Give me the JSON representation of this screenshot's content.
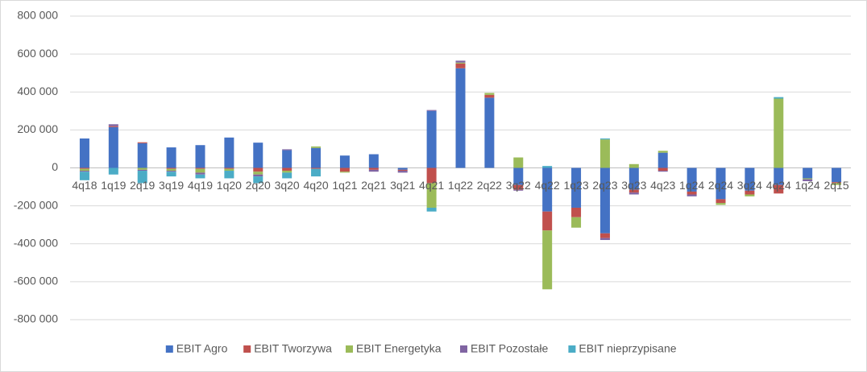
{
  "chart_data": {
    "type": "stacked_bar",
    "categories": [
      "4q18",
      "1q19",
      "2q19",
      "3q19",
      "4q19",
      "1q20",
      "2q20",
      "3q20",
      "4q20",
      "1q21",
      "2q21",
      "3q21",
      "4q21",
      "1q22",
      "2q22",
      "3q22",
      "4q22",
      "1q23",
      "2q23",
      "3q23",
      "4q23",
      "1q24",
      "2q24",
      "3q24",
      "4q24",
      "1q24",
      "2q15"
    ],
    "series": [
      {
        "name": "EBIT Agro",
        "color": "#4472c4",
        "values": [
          155000,
          215000,
          130000,
          108000,
          120000,
          160000,
          133000,
          93000,
          105000,
          65000,
          72000,
          -10000,
          300000,
          525000,
          370000,
          -90000,
          -230000,
          -210000,
          -345000,
          -115000,
          80000,
          -125000,
          -165000,
          -120000,
          -90000,
          -55000,
          -75000
        ]
      },
      {
        "name": "EBIT Tworzywa",
        "color": "#c0504d",
        "values": [
          -5000,
          5000,
          5000,
          -5000,
          -5000,
          -5000,
          -20000,
          -15000,
          -5000,
          -20000,
          -10000,
          -5000,
          -80000,
          25000,
          15000,
          -25000,
          -100000,
          -50000,
          -25000,
          -15000,
          -15000,
          -15000,
          -20000,
          -20000,
          -45000,
          0,
          -5000
        ]
      },
      {
        "name": "EBIT Energetyka",
        "color": "#9bbb59",
        "values": [
          -10000,
          0,
          -10000,
          -10000,
          -20000,
          -10000,
          -15000,
          -10000,
          8000,
          -5000,
          0,
          0,
          -130000,
          5000,
          10000,
          55000,
          -310000,
          -55000,
          150000,
          20000,
          10000,
          0,
          -10000,
          -10000,
          365000,
          -5000,
          -10000
        ]
      },
      {
        "name": "EBIT Pozostałe",
        "color": "#8064a2",
        "values": [
          -5000,
          10000,
          -5000,
          -5000,
          -10000,
          0,
          -10000,
          5000,
          0,
          0,
          -10000,
          -10000,
          5000,
          10000,
          0,
          -5000,
          0,
          0,
          -10000,
          -10000,
          -5000,
          -10000,
          0,
          0,
          0,
          -10000,
          0
        ]
      },
      {
        "name": "EBIT nieprzypisane",
        "color": "#4bacc6",
        "values": [
          -45000,
          -35000,
          -65000,
          -25000,
          -20000,
          -40000,
          -35000,
          -30000,
          -40000,
          0,
          0,
          0,
          -20000,
          0,
          0,
          0,
          10000,
          0,
          5000,
          0,
          0,
          0,
          0,
          0,
          8000,
          0,
          0
        ]
      }
    ],
    "ylim": [
      -800000,
      800000
    ],
    "yticks": [
      {
        "value": -800000,
        "label": "-800 000"
      },
      {
        "value": -600000,
        "label": "-600 000"
      },
      {
        "value": -400000,
        "label": "-400 000"
      },
      {
        "value": -200000,
        "label": "-200 000"
      },
      0,
      {
        "value": 200000,
        "label": "200 000"
      },
      {
        "value": 400000,
        "label": "400 000"
      },
      {
        "value": 600000,
        "label": "600 000"
      },
      {
        "value": 800000,
        "label": "800 000"
      }
    ],
    "grid": true,
    "legend": "bottom"
  }
}
